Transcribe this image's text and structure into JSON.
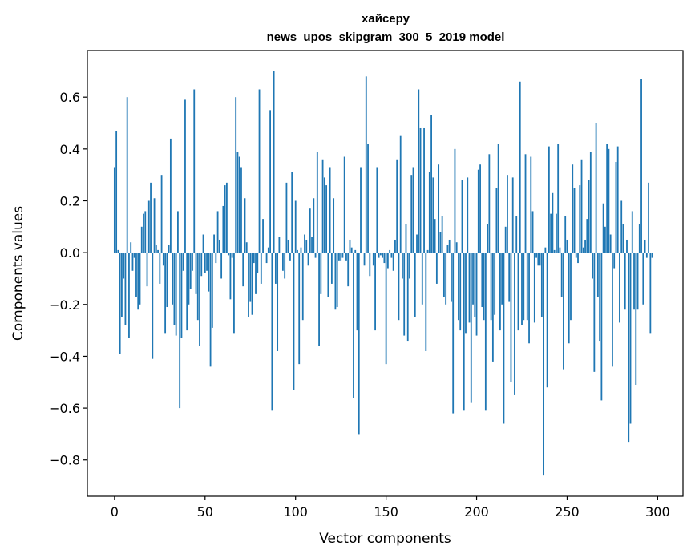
{
  "chart_data": {
    "type": "bar",
    "title": "хайсеру",
    "subtitle": "news_upos_skipgram_300_5_2019 model",
    "xlabel": "Vector components",
    "ylabel": "Components values",
    "xlim": [
      -15,
      314
    ],
    "ylim": [
      -0.94,
      0.78
    ],
    "xticks": [
      0,
      50,
      100,
      150,
      200,
      250,
      300
    ],
    "xtick_labels": [
      "0",
      "50",
      "100",
      "150",
      "200",
      "250",
      "300"
    ],
    "yticks": [
      -0.8,
      -0.6,
      -0.4,
      -0.2,
      0.0,
      0.2,
      0.4,
      0.6
    ],
    "ytick_labels": [
      "−0.8",
      "−0.6",
      "−0.4",
      "−0.2",
      "0.0",
      "0.2",
      "0.4",
      "0.6"
    ],
    "grid": false,
    "bar_color": "#1f77b4",
    "values": [
      0.33,
      0.47,
      0.01,
      -0.39,
      -0.25,
      -0.1,
      -0.28,
      0.6,
      -0.33,
      0.04,
      -0.07,
      -0.02,
      -0.17,
      -0.22,
      -0.2,
      0.1,
      0.15,
      0.16,
      -0.13,
      0.2,
      0.27,
      -0.41,
      0.21,
      0.03,
      0.01,
      -0.12,
      0.3,
      -0.05,
      -0.31,
      -0.21,
      0.03,
      0.44,
      -0.2,
      -0.28,
      -0.32,
      0.16,
      -0.6,
      -0.33,
      -0.07,
      0.59,
      -0.3,
      -0.2,
      -0.14,
      -0.07,
      0.63,
      -0.16,
      -0.26,
      -0.36,
      -0.09,
      0.07,
      -0.08,
      -0.07,
      -0.15,
      -0.44,
      -0.29,
      0.07,
      -0.04,
      0.16,
      0.05,
      -0.1,
      0.18,
      0.26,
      0.27,
      -0.01,
      -0.18,
      -0.02,
      -0.31,
      0.6,
      0.39,
      0.37,
      0.33,
      -0.13,
      0.21,
      0.04,
      -0.25,
      -0.19,
      -0.24,
      -0.04,
      -0.16,
      -0.08,
      0.63,
      -0.12,
      0.13,
      0.0,
      -0.04,
      0.02,
      0.55,
      -0.61,
      0.7,
      -0.12,
      -0.38,
      0.06,
      0.0,
      -0.07,
      -0.1,
      0.27,
      0.05,
      -0.03,
      0.31,
      -0.53,
      0.2,
      0.01,
      -0.43,
      0.02,
      -0.26,
      0.07,
      0.05,
      -0.05,
      0.17,
      0.06,
      0.21,
      -0.02,
      0.39,
      -0.36,
      -0.16,
      0.36,
      0.29,
      0.26,
      -0.17,
      0.33,
      -0.12,
      0.21,
      -0.22,
      -0.21,
      -0.03,
      -0.03,
      -0.02,
      0.37,
      -0.03,
      -0.13,
      0.05,
      0.02,
      -0.56,
      0.01,
      -0.3,
      -0.7,
      0.33,
      0.0,
      -0.05,
      0.68,
      0.42,
      -0.09,
      0.0,
      -0.05,
      -0.3,
      0.33,
      -0.02,
      -0.01,
      -0.02,
      -0.04,
      -0.43,
      -0.06,
      0.01,
      -0.02,
      -0.07,
      0.05,
      0.36,
      -0.26,
      0.45,
      -0.1,
      -0.32,
      0.11,
      -0.34,
      -0.1,
      0.3,
      0.33,
      -0.25,
      0.07,
      0.63,
      0.48,
      -0.2,
      0.48,
      -0.38,
      0.01,
      0.31,
      0.53,
      0.29,
      0.13,
      -0.12,
      0.34,
      0.08,
      0.14,
      -0.17,
      -0.2,
      0.03,
      0.05,
      -0.19,
      -0.62,
      0.4,
      0.04,
      -0.26,
      -0.3,
      0.28,
      -0.61,
      -0.31,
      0.29,
      -0.27,
      -0.58,
      -0.2,
      -0.25,
      -0.32,
      0.32,
      0.34,
      -0.21,
      -0.26,
      -0.61,
      0.11,
      0.38,
      -0.26,
      -0.42,
      -0.24,
      0.25,
      0.42,
      -0.3,
      -0.2,
      -0.66,
      0.1,
      0.3,
      -0.19,
      -0.5,
      0.29,
      -0.55,
      0.14,
      -0.3,
      0.66,
      -0.28,
      -0.26,
      0.38,
      -0.26,
      -0.35,
      0.37,
      0.16,
      -0.27,
      -0.02,
      -0.05,
      -0.05,
      -0.25,
      -0.86,
      0.02,
      -0.52,
      0.41,
      0.15,
      0.23,
      0.01,
      0.15,
      0.42,
      0.02,
      -0.17,
      -0.45,
      0.14,
      0.05,
      -0.35,
      -0.26,
      0.34,
      0.25,
      -0.02,
      -0.04,
      0.26,
      0.36,
      0.02,
      0.05,
      0.13,
      0.28,
      0.39,
      -0.1,
      -0.46,
      0.5,
      -0.17,
      -0.34,
      -0.57,
      0.19,
      0.1,
      0.42,
      0.4,
      0.07,
      -0.44,
      -0.06,
      0.35,
      0.41,
      -0.27,
      0.2,
      0.11,
      -0.22,
      0.05,
      -0.73,
      -0.66,
      0.16,
      -0.22,
      -0.51,
      -0.22,
      0.11,
      0.67,
      -0.2,
      0.05,
      -0.02,
      0.27,
      -0.31,
      -0.02
    ]
  }
}
